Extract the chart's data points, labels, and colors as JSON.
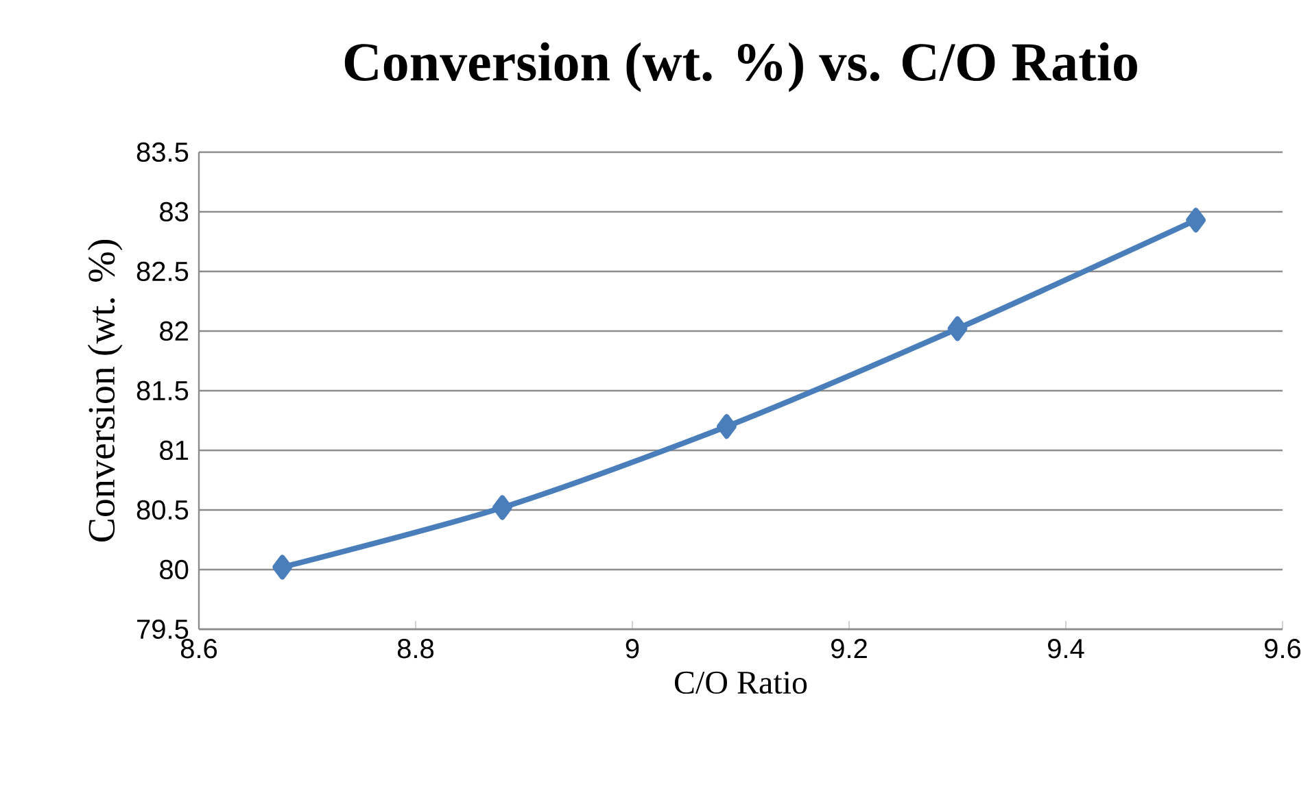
{
  "chart_data": {
    "type": "line",
    "title": "Conversion (wt. %) vs. C/O Ratio",
    "xlabel": "C/O Ratio",
    "ylabel": "Conversion (wt. %)",
    "x": [
      8.677,
      8.88,
      9.087,
      9.3,
      9.52
    ],
    "series": [
      {
        "color": "#4a7ebb",
        "values": [
          80.02,
          80.52,
          81.2,
          82.02,
          82.93
        ]
      }
    ],
    "xlim": [
      8.6,
      9.6
    ],
    "xticks": [
      8.6,
      8.8,
      9,
      9.2,
      9.4,
      9.6
    ],
    "ylim": [
      79.5,
      83.5
    ],
    "yticks": [
      79.5,
      80,
      80.5,
      81,
      81.5,
      82,
      82.5,
      83,
      83.5
    ],
    "grid": "y",
    "marker": "diamond",
    "line_style": "solid"
  }
}
